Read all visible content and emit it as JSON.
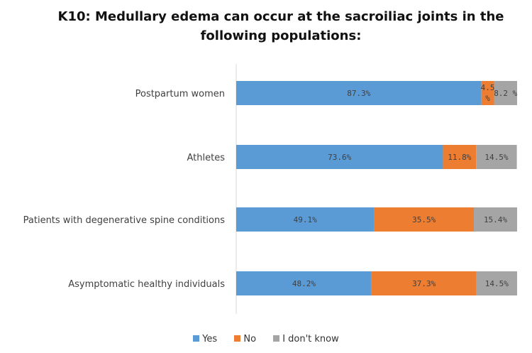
{
  "chart_data": {
    "type": "bar",
    "orientation": "horizontal",
    "stacked": "100%",
    "title": "K10: Medullary edema can occur at the sacroiliac joints in the following populations:",
    "categories": [
      "Postpartum women",
      "Athletes",
      "Patients with degenerative spine conditions",
      "Asymptomatic healthy individuals"
    ],
    "series": [
      {
        "name": "Yes",
        "color": "#5b9bd5",
        "values": [
          87.3,
          73.6,
          49.1,
          48.2
        ],
        "labels": [
          "87.3%",
          "73.6%",
          "49.1%",
          "48.2%"
        ]
      },
      {
        "name": "No",
        "color": "#ed7d31",
        "values": [
          4.5,
          11.8,
          35.5,
          37.3
        ],
        "labels": [
          "4.5 %",
          "11.8%",
          "35.5%",
          "37.3%"
        ]
      },
      {
        "name": "I don't know",
        "color": "#a5a5a5",
        "values": [
          8.2,
          14.5,
          15.4,
          14.5
        ],
        "labels": [
          "8.2 %",
          "14.5%",
          "15.4%",
          "14.5%"
        ]
      }
    ],
    "xlim": [
      0,
      100
    ],
    "legend_position": "bottom",
    "grid": false
  }
}
